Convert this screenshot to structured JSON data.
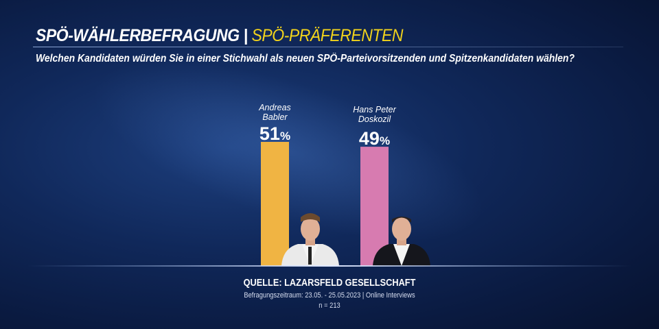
{
  "header": {
    "title": "SPÖ-WÄHLERBEFRAGUNG |",
    "subtitle": "SPÖ-PRÄFERENTEN",
    "question": "Welchen Kandidaten würden Sie in einer Stichwahl als neuen SPÖ-Parteivorsitzenden und Spitzenkandidaten wählen?"
  },
  "chart_data": {
    "type": "bar",
    "title": "",
    "categories": [
      "Andreas Babler",
      "Hans Peter Doskozil"
    ],
    "category_lines": [
      [
        "Andreas",
        "Babler"
      ],
      [
        "Hans Peter",
        "Doskozil"
      ]
    ],
    "values": [
      51,
      49
    ],
    "value_labels": [
      "51",
      "49"
    ],
    "unit": "%",
    "colors": [
      "#f0b443",
      "#d77bb0"
    ],
    "ylim": [
      0,
      51
    ],
    "grid": false
  },
  "source": {
    "line1": "QUELLE:  LAZARSFELD GESELLSCHAFT",
    "line2": "Befragungszeitraum: 23.05. - 25.05.2023 | Online Interviews",
    "line3": "n = 213"
  }
}
